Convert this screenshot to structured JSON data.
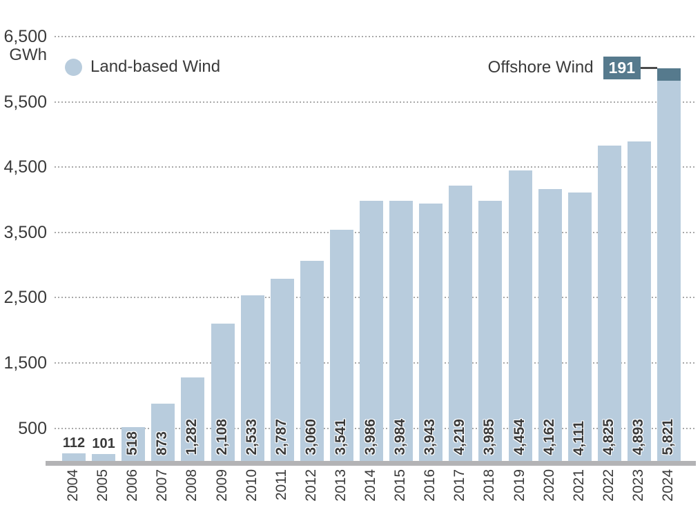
{
  "chart_data": {
    "type": "bar",
    "stacked": true,
    "unit_label": "GWh",
    "categories": [
      "2004",
      "2005",
      "2006",
      "2007",
      "2008",
      "2009",
      "2010",
      "2011",
      "2012",
      "2013",
      "2014",
      "2015",
      "2016",
      "2017",
      "2018",
      "2019",
      "2020",
      "2021",
      "2022",
      "2023",
      "2024"
    ],
    "series": [
      {
        "name": "Land-based Wind",
        "color": "#b8ccdd",
        "values": [
          112,
          101,
          518,
          873,
          1282,
          2108,
          2533,
          2787,
          3060,
          3541,
          3986,
          3984,
          3943,
          4219,
          3985,
          4454,
          4162,
          4111,
          4825,
          4893,
          5821
        ]
      },
      {
        "name": "Offshore Wind",
        "color": "#567a8d",
        "values": [
          0,
          0,
          0,
          0,
          0,
          0,
          0,
          0,
          0,
          0,
          0,
          0,
          0,
          0,
          0,
          0,
          0,
          0,
          0,
          0,
          191
        ]
      }
    ],
    "bar_labels": [
      "112",
      "101",
      "518",
      "873",
      "1,282",
      "2,108",
      "2,533",
      "2,787",
      "3,060",
      "3,541",
      "3,986",
      "3,984",
      "3,943",
      "4,219",
      "3,985",
      "4,454",
      "4,162",
      "4,111",
      "4,825",
      "4,893",
      "5,821"
    ],
    "offshore_callout_value": "191",
    "ylim": [
      0,
      6500
    ],
    "yticks": [
      6500,
      5500,
      4500,
      3500,
      2500,
      1500,
      500
    ],
    "ytick_labels": [
      "6,500",
      "5,500",
      "4,500",
      "3,500",
      "2,500",
      "1,500",
      "500"
    ],
    "grid": "dotted horizontal"
  },
  "legend": {
    "land_label": "Land-based Wind",
    "offshore_label": "Offshore Wind",
    "offshore_value": "191"
  },
  "colors": {
    "land_bar": "#b8ccdd",
    "offshore_bar": "#567a8d",
    "text": "#3a3a3a",
    "gridline": "#a8a8a8",
    "baseline": "#b3b3b5",
    "connector": "#4a4a4a",
    "badge_text": "#ffffff"
  }
}
